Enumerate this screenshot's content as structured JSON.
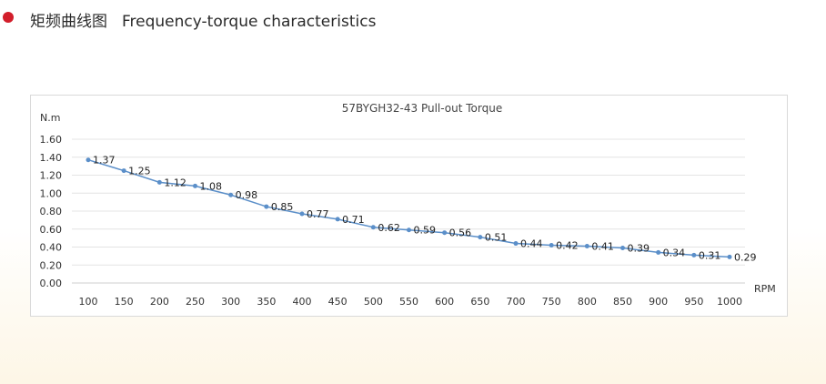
{
  "section": {
    "title_zh": "矩频曲线图",
    "title_en": "Frequency-torque characteristics",
    "bullet_color": "#d21e2b"
  },
  "chart_data": {
    "type": "line",
    "title": "57BYGH32-43 Pull-out Torque",
    "ylabel": "N.m",
    "xlabel": "RPM",
    "ylim": [
      0,
      1.6
    ],
    "yticks": [
      "0.00",
      "0.20",
      "0.40",
      "0.60",
      "0.80",
      "1.00",
      "1.20",
      "1.40",
      "1.60"
    ],
    "grid": true,
    "legend": "none",
    "line_color": "#5b8fc9",
    "categories": [
      "100",
      "150",
      "200",
      "250",
      "300",
      "350",
      "400",
      "450",
      "500",
      "550",
      "600",
      "650",
      "700",
      "750",
      "800",
      "850",
      "900",
      "950",
      "1000"
    ],
    "series": [
      {
        "values": [
          1.37,
          1.25,
          1.12,
          1.08,
          0.98,
          0.85,
          0.77,
          0.71,
          0.62,
          0.59,
          0.56,
          0.51,
          0.44,
          0.42,
          0.41,
          0.39,
          0.34,
          0.31,
          0.29
        ],
        "labels": [
          "1.37",
          "1.25",
          "1.12",
          "1.08",
          "0.98",
          "0.85",
          "0.77",
          "0.71",
          "0.62",
          "0.59",
          "0.56",
          "0.51",
          "0.44",
          "0.42",
          "0.41",
          "0.39",
          "0.34",
          "0.31",
          "0.29"
        ]
      }
    ]
  }
}
